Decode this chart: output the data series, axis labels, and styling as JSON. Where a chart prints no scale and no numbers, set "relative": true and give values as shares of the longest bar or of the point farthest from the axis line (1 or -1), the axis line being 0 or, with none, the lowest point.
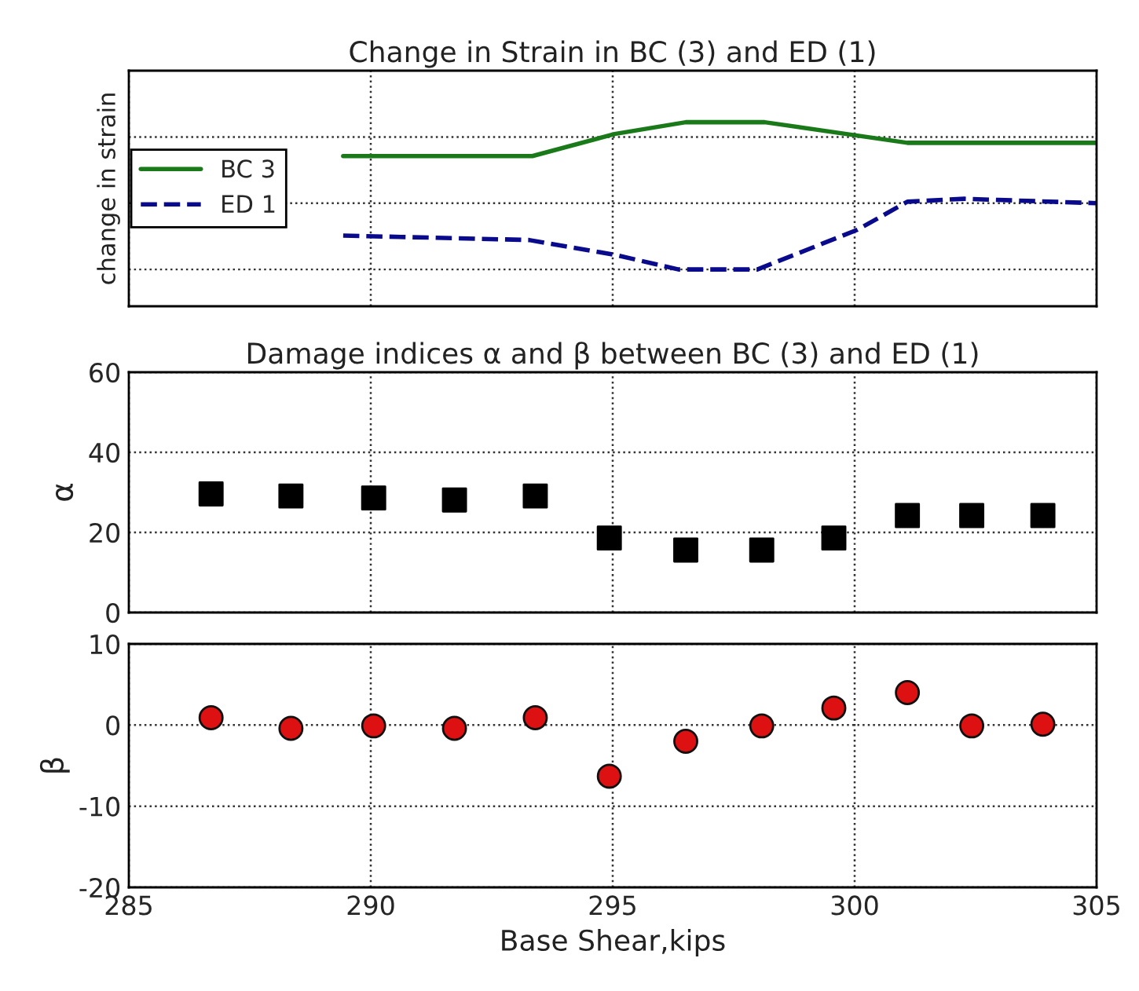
{
  "chart_data": [
    {
      "type": "line",
      "title": "Change in Strain in BC (3) and ED (1)",
      "ylabel": "change in strain",
      "relative": true,
      "xlim": [
        285,
        305
      ],
      "xticks": [
        285,
        290,
        295,
        300,
        305
      ],
      "tick_labels": false,
      "grid": true,
      "legend": "left",
      "marker": "none",
      "series": [
        {
          "name": "BC 3",
          "color": "#1a7a1a",
          "line_style": "solid",
          "x": [
            289.43,
            292.68,
            293.34,
            295.04,
            296.51,
            298.14,
            301.09,
            305.0
          ],
          "values": [
            0.77,
            0.77,
            0.77,
            0.92,
            1.0,
            1.0,
            0.86,
            0.86
          ]
        },
        {
          "name": "ED 1",
          "color": "#0a0a8c",
          "line_style": "dashed",
          "x": [
            289.43,
            293.27,
            295.04,
            296.36,
            297.99,
            300.06,
            301.09,
            302.27,
            305.0
          ],
          "values": [
            0.23,
            0.2,
            0.1,
            0.0,
            0.0,
            0.27,
            0.46,
            0.48,
            0.45
          ]
        }
      ]
    },
    {
      "type": "scatter",
      "title": "Damage indices α and β between BC (3) and ED (1)",
      "ylabel": "α",
      "xlim": [
        285,
        305
      ],
      "xticks": [
        285,
        290,
        295,
        300,
        305
      ],
      "ylim": [
        0,
        60
      ],
      "yticks": [
        0,
        20,
        40,
        60
      ],
      "tick_labels": "y",
      "grid": true,
      "marker": "square",
      "x": [
        286.7,
        288.35,
        290.06,
        291.73,
        293.4,
        294.93,
        296.51,
        298.08,
        299.57,
        301.09,
        302.42,
        303.89
      ],
      "series": [
        {
          "color": "#000000",
          "values": [
            29.6,
            29.1,
            28.6,
            28.1,
            29.1,
            18.6,
            15.6,
            15.6,
            18.6,
            24.2,
            24.2,
            24.2
          ]
        }
      ]
    },
    {
      "type": "scatter",
      "xlabel": "Base Shear,kips",
      "ylabel": "β",
      "xlim": [
        285,
        305
      ],
      "xticks": [
        285,
        290,
        295,
        300,
        305
      ],
      "ylim": [
        -20,
        10
      ],
      "yticks": [
        -20,
        -10,
        0,
        10
      ],
      "grid": true,
      "marker": "circle",
      "x": [
        286.7,
        288.35,
        290.06,
        291.73,
        293.4,
        294.93,
        296.51,
        298.08,
        299.57,
        301.09,
        302.42,
        303.89
      ],
      "series": [
        {
          "color": "#dd1111",
          "values": [
            0.9,
            -0.4,
            -0.1,
            -0.4,
            0.9,
            -6.3,
            -2.0,
            -0.1,
            2.1,
            4.0,
            -0.1,
            0.1
          ]
        }
      ]
    }
  ]
}
